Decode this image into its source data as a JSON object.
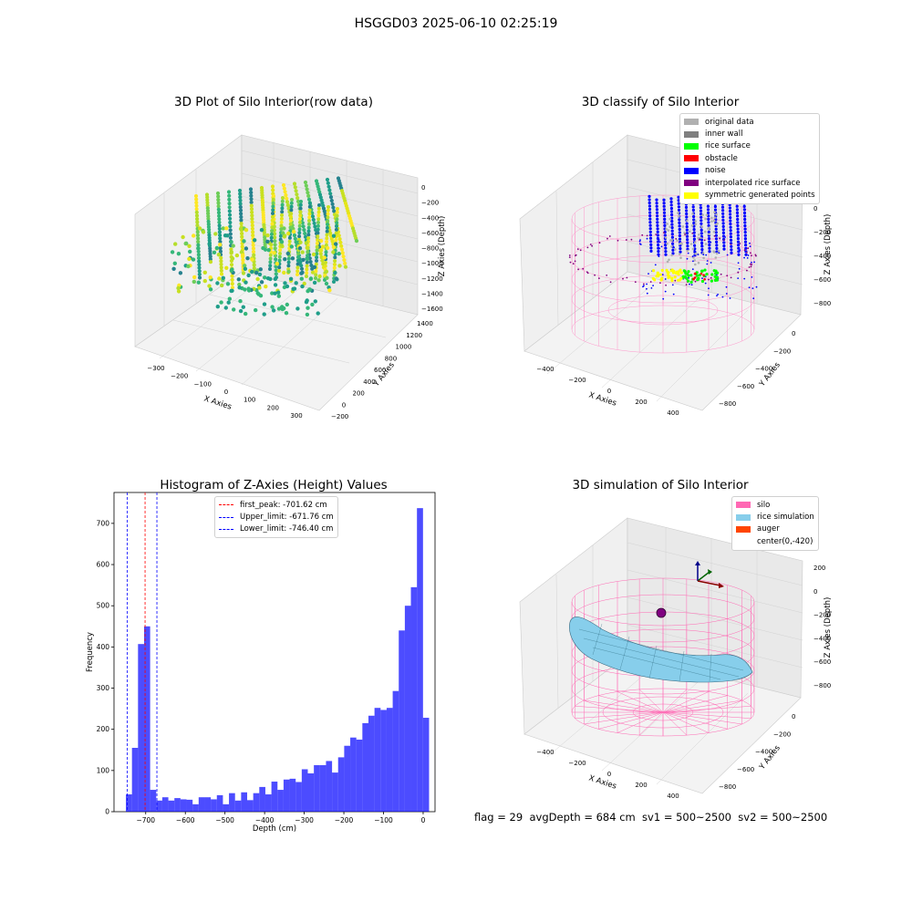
{
  "suptitle": "HSGGD03 2025-06-10 02:25:19",
  "panels": {
    "raw": {
      "title": "3D Plot of Silo Interior(row data)",
      "xlabel": "X Axies",
      "ylabel": "Y Axies",
      "zlabel": "Z Axies (Depth)",
      "xticks": [
        "−300",
        "−200",
        "−100",
        "0",
        "100",
        "200",
        "300"
      ],
      "yticks": [
        "−200",
        "0",
        "200",
        "400",
        "600",
        "800",
        "1000",
        "1200",
        "1400"
      ],
      "zticks": [
        "0",
        "−200",
        "−400",
        "−600",
        "−800",
        "−1000",
        "−1200",
        "−1400",
        "−1600"
      ]
    },
    "classify": {
      "title": "3D classify of Silo Interior",
      "xlabel": "X Axies",
      "ylabel": "Y Axies",
      "zlabel": "Z Axies (Depth)",
      "xticks": [
        "−400",
        "−200",
        "0",
        "200",
        "400"
      ],
      "yticks": [
        "−800",
        "−600",
        "−400",
        "−200",
        "0"
      ],
      "zticks": [
        "0",
        "−200",
        "−400",
        "−600",
        "−800"
      ],
      "legend": [
        {
          "label": "original data",
          "color": "#b0b0b0"
        },
        {
          "label": "inner wall",
          "color": "#808080"
        },
        {
          "label": "rice surface",
          "color": "#00ff00"
        },
        {
          "label": "obstacle",
          "color": "#ff0000"
        },
        {
          "label": "noise",
          "color": "#0000ff"
        },
        {
          "label": "interpolated rice surface",
          "color": "#800080"
        },
        {
          "label": "symmetric generated points",
          "color": "#ffff00"
        }
      ]
    },
    "simulation": {
      "title": "3D simulation of Silo Interior",
      "xlabel": "X Axies",
      "ylabel": "Y Axies",
      "zlabel": "Z Axies (Depth)",
      "xticks": [
        "−400",
        "−200",
        "0",
        "200",
        "400"
      ],
      "yticks": [
        "−800",
        "−600",
        "−400",
        "−200",
        "0"
      ],
      "zticks": [
        "200",
        "0",
        "−200",
        "−400",
        "−600",
        "−800"
      ],
      "legend": [
        {
          "label": "silo",
          "color": "#ff69b4"
        },
        {
          "label": "rice simulation",
          "color": "#87ceeb"
        },
        {
          "label": "auger",
          "color": "#ff4500"
        },
        {
          "label": "center(0,-420)",
          "color": "#ffffff"
        }
      ]
    }
  },
  "chart_data": {
    "type": "bar",
    "title": "Histogram of Z-Axies (Height) Values",
    "xlabel": "Depth (cm)",
    "ylabel": "Frequency",
    "xlim": [
      -780,
      30
    ],
    "ylim": [
      0,
      775
    ],
    "xticks": [
      -700,
      -600,
      -500,
      -400,
      -300,
      -200,
      -100,
      0
    ],
    "yticks": [
      0,
      100,
      200,
      300,
      400,
      500,
      600,
      700
    ],
    "bar_color": "#0000ff",
    "bin_start": -750,
    "bin_width": 15.3,
    "values": [
      42,
      155,
      407,
      450,
      53,
      27,
      35,
      27,
      33,
      30,
      29,
      18,
      35,
      35,
      30,
      40,
      18,
      45,
      27,
      47,
      28,
      45,
      60,
      42,
      73,
      53,
      78,
      80,
      72,
      103,
      93,
      113,
      113,
      123,
      95,
      132,
      160,
      180,
      175,
      215,
      233,
      252,
      247,
      252,
      293,
      440,
      500,
      545,
      737,
      228
    ],
    "vlines": [
      {
        "x": -701.62,
        "color": "#ff0000",
        "label": "first_peak: -701.62 cm"
      },
      {
        "x": -671.76,
        "color": "#0000ff",
        "label": "Upper_limit: -671.76 cm"
      },
      {
        "x": -746.4,
        "color": "#0000ff",
        "label": "Lower_limit: -746.40 cm"
      }
    ],
    "legend_position": "top-center"
  },
  "footer": "flag = 29  avgDepth = 684 cm  sv1 = 500~2500  sv2 = 500~2500"
}
